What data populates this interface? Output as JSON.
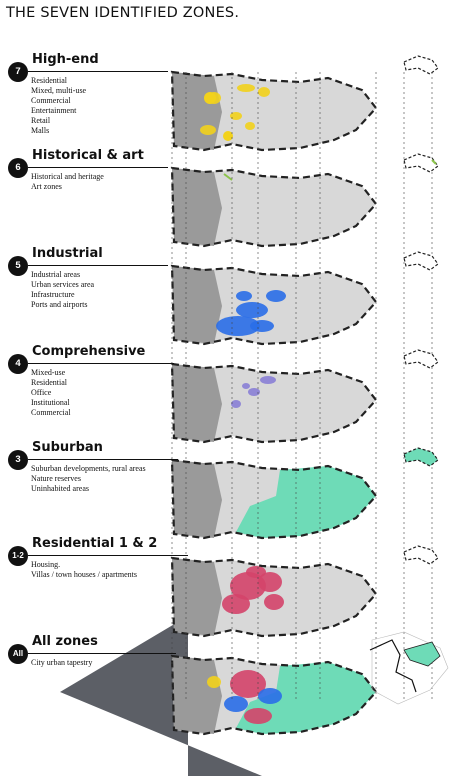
{
  "title": "THE SEVEN IDENTIFIED ZONES.",
  "zones": [
    {
      "badge": "7",
      "name": "High-end",
      "items": [
        "Residential",
        "Mixed, multi-use",
        "Commercial",
        "Entertainment",
        "Retail",
        "Malls"
      ],
      "accent": "#f2d21c"
    },
    {
      "badge": "6",
      "name": "Historical & art",
      "items": [
        "Historical and heritage",
        "Art zones"
      ],
      "accent": "#8bc34a"
    },
    {
      "badge": "5",
      "name": "Industrial",
      "items": [
        "Industrial areas",
        "Urban services area",
        "Infrastructure",
        "Ports and airports"
      ],
      "accent": "#2a6ee8"
    },
    {
      "badge": "4",
      "name": "Comprehensive",
      "items": [
        "Mixed-use",
        "Residential",
        "Office",
        "Institutional",
        "Commercial"
      ],
      "accent": "#8a7fd6"
    },
    {
      "badge": "3",
      "name": "Suburban",
      "items": [
        "Suburban developments, rural areas",
        "Nature reserves",
        "Uninhabited areas"
      ],
      "accent": "#6edbb7"
    },
    {
      "badge": "1-2",
      "name": "Residential 1 & 2",
      "items": [
        "Housing.",
        "Villas / town houses / apartments"
      ],
      "accent": "#d4446a"
    },
    {
      "badge": "All",
      "name": "All zones",
      "items": [
        "City urban tapestry"
      ],
      "accent": "#6edbb7"
    }
  ],
  "colors": {
    "land_grey": "#d8d8d8",
    "water_grey": "#9a9a9a",
    "base_dark": "#5c5f66",
    "outline": "#222222"
  }
}
